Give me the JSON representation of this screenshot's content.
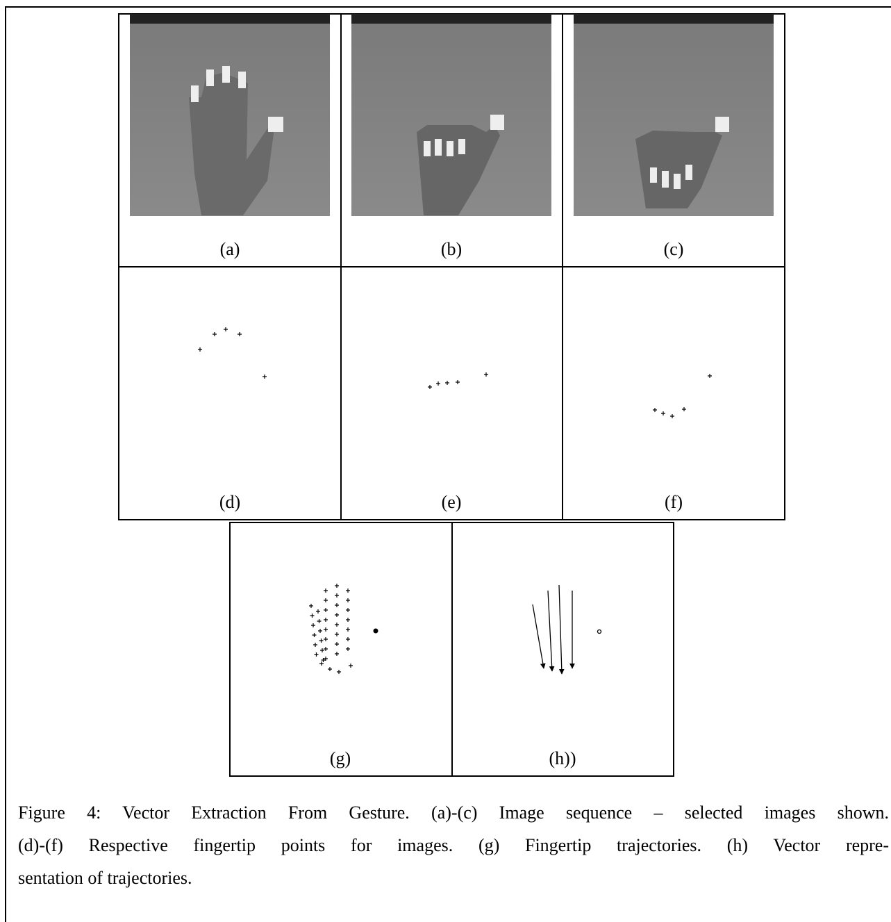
{
  "panels": {
    "a": "(a)",
    "b": "(b)",
    "c": "(c)",
    "d": "(d)",
    "e": "(e)",
    "f": "(f)",
    "g": "(g)",
    "h": "(h))"
  },
  "caption": {
    "lines": [
      "Figure 4: Vector Extraction From Gesture. (a)-(c) Image sequence – selected images shown.",
      "(d)-(f) Respective fingertip points for images. (g) Fingertip trajectories. (h) Vector repre-",
      "sentation of trajectories."
    ]
  }
}
